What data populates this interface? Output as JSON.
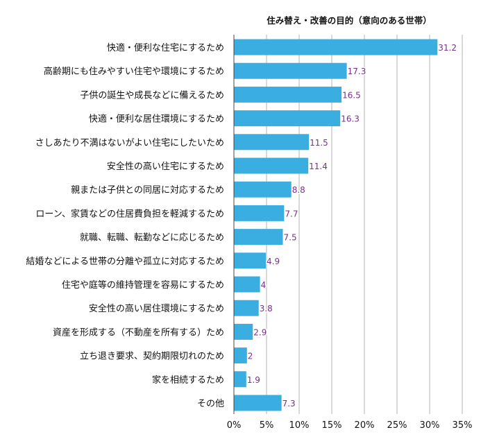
{
  "chart_data": {
    "type": "bar",
    "orientation": "horizontal",
    "title": "住み替え・改善の目的（意向のある世帯）",
    "categories": [
      "快適・便利な住宅にするため",
      "高齢期にも住みやすい住宅や環境にするため",
      "子供の誕生や成長などに備えるため",
      "快適・便利な居住環境にするため",
      "さしあたり不満はないがよい住宅にしたいため",
      "安全性の高い住宅にするため",
      "親または子供との同居に対応するため",
      "ローン、家賃などの住居費負担を軽減するため",
      "就職、転職、転勤などに応じるため",
      "結婚などによる世帯の分離や孤立に対応するため",
      "住宅や庭等の維持管理を容易にするため",
      "安全性の高い居住環境にするため",
      "資産を形成する（不動産を所有する）ため",
      "立ち退き要求、契約期限切れのため",
      "家を相続するため",
      "その他"
    ],
    "values": [
      31.2,
      17.3,
      16.5,
      16.3,
      11.5,
      11.4,
      8.8,
      7.7,
      7.5,
      4.9,
      4,
      3.8,
      2.9,
      2,
      1.9,
      7.3
    ],
    "value_labels": [
      "31.2",
      "17.3",
      "16.5",
      "16.3",
      "11.5",
      "11.4",
      "8.8",
      "7.7",
      "7.5",
      "4.9",
      "4",
      "3.8",
      "2.9",
      "2",
      "1.9",
      "7.3"
    ],
    "xlim": [
      0,
      35
    ],
    "x_ticks": [
      0,
      5,
      10,
      15,
      20,
      25,
      30,
      35
    ],
    "x_tick_labels": [
      "0%",
      "5%",
      "10%",
      "15%",
      "20%",
      "25%",
      "30%",
      "35%"
    ],
    "grid": "vertical",
    "colors": {
      "bar": "#3aaee0",
      "value_label": "#7a2f8c",
      "grid": "#b3b3b3"
    }
  }
}
